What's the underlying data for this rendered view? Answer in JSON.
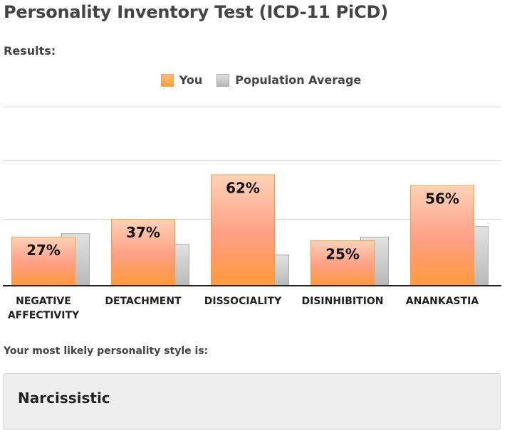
{
  "page": {
    "title": "Personality Inventory Test (ICD-11 PiCD)",
    "results_label": "Results:",
    "style_label": "Your most likely personality style is:",
    "style_value": "Narcissistic"
  },
  "legend": {
    "you": "You",
    "population": "Population Average"
  },
  "colors": {
    "you_top": "#ffd2b8",
    "you_mid": "#ff9e84",
    "you_bottom": "#ff9a3a",
    "you_border": "#f5a040",
    "pop_top": "#e2e2e2",
    "pop_bottom": "#b9b9b9",
    "axis": "#222222",
    "grid": "#d9d9d9"
  },
  "chart_data": {
    "type": "bar",
    "title": "Results:",
    "categories": [
      "NEGATIVE\nAFFECTIVITY",
      "DETACHMENT",
      "DISSOCIALITY",
      "DISINHIBITION",
      "ANANKASTIA"
    ],
    "series": [
      {
        "name": "You",
        "values": [
          27,
          37,
          62,
          25,
          56
        ],
        "labels": [
          "27%",
          "37%",
          "62%",
          "25%",
          "56%"
        ]
      },
      {
        "name": "Population Average",
        "values": [
          29,
          23,
          17,
          27,
          33
        ]
      }
    ],
    "ylim": [
      0,
      100
    ],
    "grid": true,
    "legend": "top-center"
  }
}
